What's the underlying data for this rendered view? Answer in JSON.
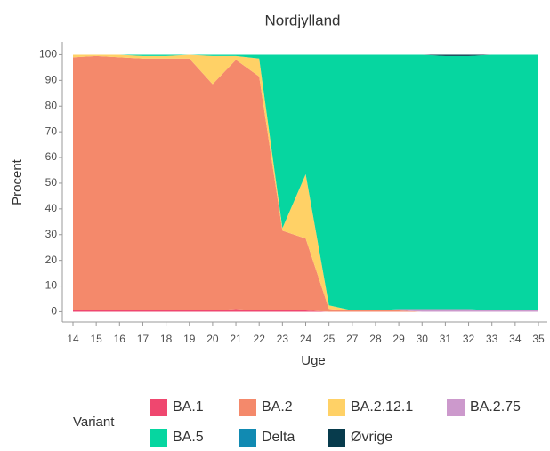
{
  "chart_data": {
    "type": "area",
    "stacked": true,
    "title": "Nordjylland",
    "x_label": "Uge",
    "y_label": "Procent",
    "legend_title": "Variant",
    "categories": [
      "14",
      "15",
      "16",
      "17",
      "18",
      "19",
      "20",
      "21",
      "22",
      "23",
      "24",
      "25",
      "27",
      "28",
      "29",
      "30",
      "31",
      "32",
      "33",
      "34",
      "35"
    ],
    "series": [
      {
        "name": "BA.1",
        "color": "#ef476f",
        "values": [
          0.5,
          0.5,
          0.5,
          0.5,
          0.5,
          0.5,
          0.5,
          1,
          0.5,
          0.5,
          0.5,
          0,
          0,
          0,
          0,
          0,
          0,
          0,
          0,
          0,
          0
        ]
      },
      {
        "name": "BA.2",
        "color": "#f4896b",
        "values": [
          98.5,
          99,
          98.5,
          98,
          98,
          98,
          88,
          97,
          91,
          31,
          28,
          1,
          0.5,
          0.5,
          0.5,
          0,
          0,
          0,
          0,
          0,
          0
        ]
      },
      {
        "name": "BA.2.12.1",
        "color": "#ffd166",
        "values": [
          1,
          0.5,
          1,
          1,
          1,
          1.5,
          11,
          1.5,
          7,
          1,
          25,
          1.5,
          0,
          0,
          0,
          0,
          0,
          0,
          0,
          0,
          0
        ]
      },
      {
        "name": "BA.2.75",
        "color": "#cc99cc",
        "values": [
          0,
          0,
          0,
          0,
          0,
          0,
          0,
          0,
          0,
          0,
          0,
          0,
          0,
          0,
          0.5,
          1,
          1,
          1,
          0.5,
          0.5,
          0.5
        ]
      },
      {
        "name": "BA.5",
        "color": "#06d6a0",
        "values": [
          0,
          0,
          0,
          0.5,
          0.5,
          0,
          0.5,
          0.5,
          1.5,
          67.5,
          46.5,
          97.5,
          99.5,
          99.5,
          99,
          99,
          98.5,
          98.5,
          99.5,
          99.5,
          99.5
        ]
      },
      {
        "name": "Delta",
        "color": "#118ab2",
        "values": [
          0,
          0,
          0,
          0,
          0,
          0,
          0,
          0,
          0,
          0,
          0,
          0,
          0,
          0,
          0,
          0,
          0,
          0,
          0,
          0,
          0
        ]
      },
      {
        "name": "Øvrige",
        "color": "#073b4c",
        "values": [
          0,
          0,
          0,
          0,
          0,
          0,
          0,
          0,
          0,
          0,
          0,
          0,
          0,
          0,
          0,
          0,
          0.5,
          0.5,
          0,
          0,
          0
        ]
      }
    ],
    "ylim": [
      -4,
      105
    ],
    "yticks": [
      0,
      10,
      20,
      30,
      40,
      50,
      60,
      70,
      80,
      90,
      100
    ],
    "grid": false,
    "legend_position": "bottom"
  }
}
